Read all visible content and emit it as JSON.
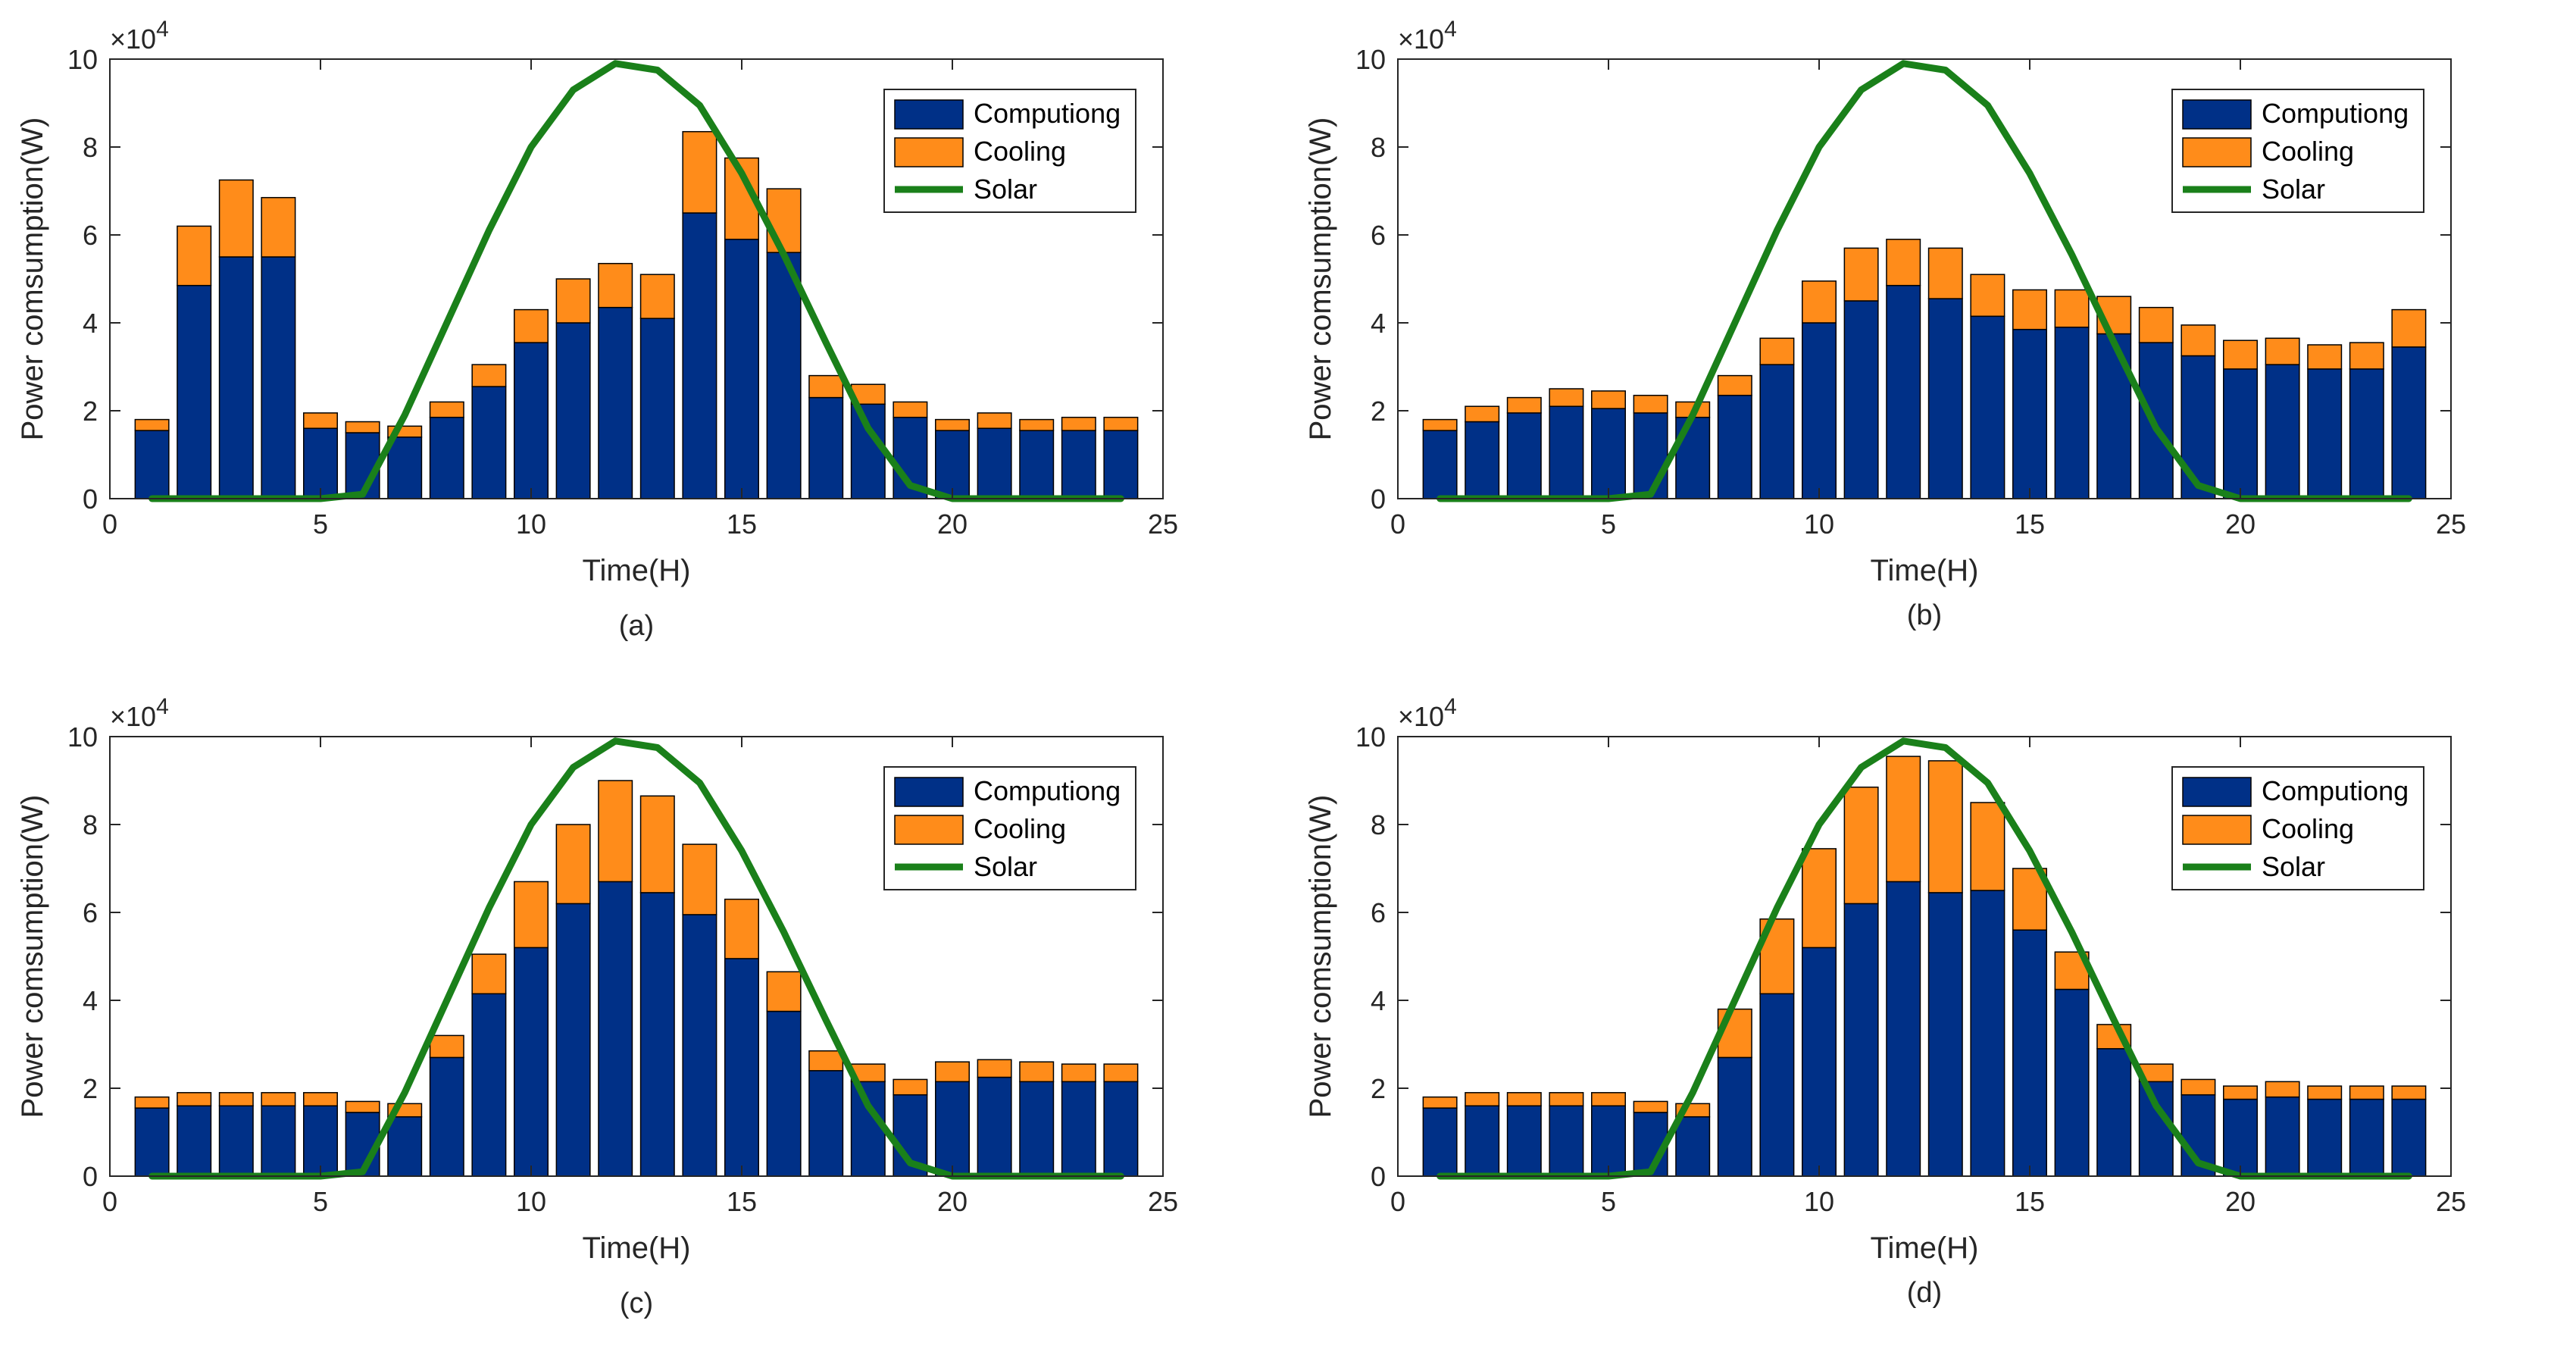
{
  "figure": {
    "colors": {
      "computing": "#003087",
      "cooling": "#FF8C1A",
      "solar": "#1A801A",
      "bar_edge": "#000000",
      "axis": "#262626"
    },
    "legend_labels": [
      "Computiong",
      "Cooling",
      "Solar"
    ]
  },
  "chart_data": [
    {
      "type": "bar",
      "stacked": true,
      "caption": "(a)",
      "xlabel": "Time(H)",
      "ylabel": "Power comsumption(W)",
      "y_multiplier": "×10",
      "y_multiplier_exp": "4",
      "xlim": [
        0,
        25
      ],
      "ylim": [
        0,
        10
      ],
      "xticks": [
        "0",
        "5",
        "10",
        "15",
        "20",
        "25"
      ],
      "yticks": [
        "0",
        "2",
        "4",
        "6",
        "8",
        "10"
      ],
      "legend_position": "top-right",
      "x": [
        1,
        2,
        3,
        4,
        5,
        6,
        7,
        8,
        9,
        10,
        11,
        12,
        13,
        14,
        15,
        16,
        17,
        18,
        19,
        20,
        21,
        22,
        23,
        24
      ],
      "series": [
        {
          "name": "Computiong",
          "values": [
            1.55,
            4.85,
            5.5,
            5.5,
            1.6,
            1.5,
            1.4,
            1.85,
            2.55,
            3.55,
            4.0,
            4.35,
            4.1,
            6.5,
            5.9,
            5.6,
            2.3,
            2.15,
            1.85,
            1.55,
            1.6,
            1.55,
            1.55,
            1.55
          ]
        },
        {
          "name": "Cooling",
          "values": [
            0.25,
            1.35,
            1.75,
            1.35,
            0.35,
            0.25,
            0.25,
            0.35,
            0.5,
            0.75,
            1.0,
            1.0,
            1.0,
            1.85,
            1.85,
            1.45,
            0.5,
            0.45,
            0.35,
            0.25,
            0.35,
            0.25,
            0.3,
            0.3
          ]
        },
        {
          "name": "Solar",
          "type": "line",
          "values": [
            0,
            0,
            0,
            0,
            0,
            0.1,
            1.9,
            4.0,
            6.1,
            8.0,
            9.3,
            9.9,
            9.75,
            8.95,
            7.4,
            5.55,
            3.55,
            1.6,
            0.3,
            0,
            0,
            0,
            0,
            0
          ]
        }
      ]
    },
    {
      "type": "bar",
      "stacked": true,
      "caption": "(b)",
      "xlabel": "Time(H)",
      "ylabel": "Power comsumption(W)",
      "y_multiplier": "×10",
      "y_multiplier_exp": "4",
      "xlim": [
        0,
        25
      ],
      "ylim": [
        0,
        10
      ],
      "xticks": [
        "0",
        "5",
        "10",
        "15",
        "20",
        "25"
      ],
      "yticks": [
        "0",
        "2",
        "4",
        "6",
        "8",
        "10"
      ],
      "legend_position": "top-right",
      "x": [
        1,
        2,
        3,
        4,
        5,
        6,
        7,
        8,
        9,
        10,
        11,
        12,
        13,
        14,
        15,
        16,
        17,
        18,
        19,
        20,
        21,
        22,
        23,
        24
      ],
      "series": [
        {
          "name": "Computiong",
          "values": [
            1.55,
            1.75,
            1.95,
            2.1,
            2.05,
            1.95,
            1.85,
            2.35,
            3.05,
            4.0,
            4.5,
            4.85,
            4.55,
            4.15,
            3.85,
            3.9,
            3.75,
            3.55,
            3.25,
            2.95,
            3.05,
            2.95,
            2.95,
            3.45
          ]
        },
        {
          "name": "Cooling",
          "values": [
            0.25,
            0.35,
            0.35,
            0.4,
            0.4,
            0.4,
            0.35,
            0.45,
            0.6,
            0.95,
            1.2,
            1.05,
            1.15,
            0.95,
            0.9,
            0.85,
            0.85,
            0.8,
            0.7,
            0.65,
            0.6,
            0.55,
            0.6,
            0.85
          ]
        },
        {
          "name": "Solar",
          "type": "line",
          "values": [
            0,
            0,
            0,
            0,
            0,
            0.1,
            1.9,
            4.0,
            6.1,
            8.0,
            9.3,
            9.9,
            9.75,
            8.95,
            7.4,
            5.55,
            3.55,
            1.6,
            0.3,
            0,
            0,
            0,
            0,
            0
          ]
        }
      ]
    },
    {
      "type": "bar",
      "stacked": true,
      "caption": "(c)",
      "xlabel": "Time(H)",
      "ylabel": "Power comsumption(W)",
      "y_multiplier": "×10",
      "y_multiplier_exp": "4",
      "xlim": [
        0,
        25
      ],
      "ylim": [
        0,
        10
      ],
      "xticks": [
        "0",
        "5",
        "10",
        "15",
        "20",
        "25"
      ],
      "yticks": [
        "0",
        "2",
        "4",
        "6",
        "8",
        "10"
      ],
      "legend_position": "top-right",
      "x": [
        1,
        2,
        3,
        4,
        5,
        6,
        7,
        8,
        9,
        10,
        11,
        12,
        13,
        14,
        15,
        16,
        17,
        18,
        19,
        20,
        21,
        22,
        23,
        24
      ],
      "series": [
        {
          "name": "Computiong",
          "values": [
            1.55,
            1.6,
            1.6,
            1.6,
            1.6,
            1.45,
            1.35,
            2.7,
            4.15,
            5.2,
            6.2,
            6.7,
            6.45,
            5.95,
            4.95,
            3.75,
            2.4,
            2.15,
            1.85,
            2.15,
            2.25,
            2.15,
            2.15,
            2.15
          ]
        },
        {
          "name": "Cooling",
          "values": [
            0.25,
            0.3,
            0.3,
            0.3,
            0.3,
            0.25,
            0.3,
            0.5,
            0.9,
            1.5,
            1.8,
            2.3,
            2.2,
            1.6,
            1.35,
            0.9,
            0.45,
            0.4,
            0.35,
            0.45,
            0.4,
            0.45,
            0.4,
            0.4
          ]
        },
        {
          "name": "Solar",
          "type": "line",
          "values": [
            0,
            0,
            0,
            0,
            0,
            0.1,
            1.9,
            4.0,
            6.1,
            8.0,
            9.3,
            9.9,
            9.75,
            8.95,
            7.4,
            5.55,
            3.55,
            1.6,
            0.3,
            0,
            0,
            0,
            0,
            0
          ]
        }
      ]
    },
    {
      "type": "bar",
      "stacked": true,
      "caption": "(d)",
      "xlabel": "Time(H)",
      "ylabel": "Power comsumption(W)",
      "y_multiplier": "×10",
      "y_multiplier_exp": "4",
      "xlim": [
        0,
        25
      ],
      "ylim": [
        0,
        10
      ],
      "xticks": [
        "0",
        "5",
        "10",
        "15",
        "20",
        "25"
      ],
      "yticks": [
        "0",
        "2",
        "4",
        "6",
        "8",
        "10"
      ],
      "legend_position": "top-right",
      "x": [
        1,
        2,
        3,
        4,
        5,
        6,
        7,
        8,
        9,
        10,
        11,
        12,
        13,
        14,
        15,
        16,
        17,
        18,
        19,
        20,
        21,
        22,
        23,
        24
      ],
      "series": [
        {
          "name": "Computiong",
          "values": [
            1.55,
            1.6,
            1.6,
            1.6,
            1.6,
            1.45,
            1.35,
            2.7,
            4.15,
            5.2,
            6.2,
            6.7,
            6.45,
            6.5,
            5.6,
            4.25,
            2.9,
            2.15,
            1.85,
            1.75,
            1.8,
            1.75,
            1.75,
            1.75
          ]
        },
        {
          "name": "Cooling",
          "values": [
            0.25,
            0.3,
            0.3,
            0.3,
            0.3,
            0.25,
            0.3,
            1.1,
            1.7,
            2.25,
            2.65,
            2.85,
            3.0,
            2.0,
            1.4,
            0.85,
            0.55,
            0.4,
            0.35,
            0.3,
            0.35,
            0.3,
            0.3,
            0.3
          ]
        },
        {
          "name": "Solar",
          "type": "line",
          "values": [
            0,
            0,
            0,
            0,
            0,
            0.1,
            1.9,
            4.0,
            6.1,
            8.0,
            9.3,
            9.9,
            9.75,
            8.95,
            7.4,
            5.55,
            3.55,
            1.6,
            0.3,
            0,
            0,
            0,
            0,
            0
          ]
        }
      ]
    }
  ]
}
